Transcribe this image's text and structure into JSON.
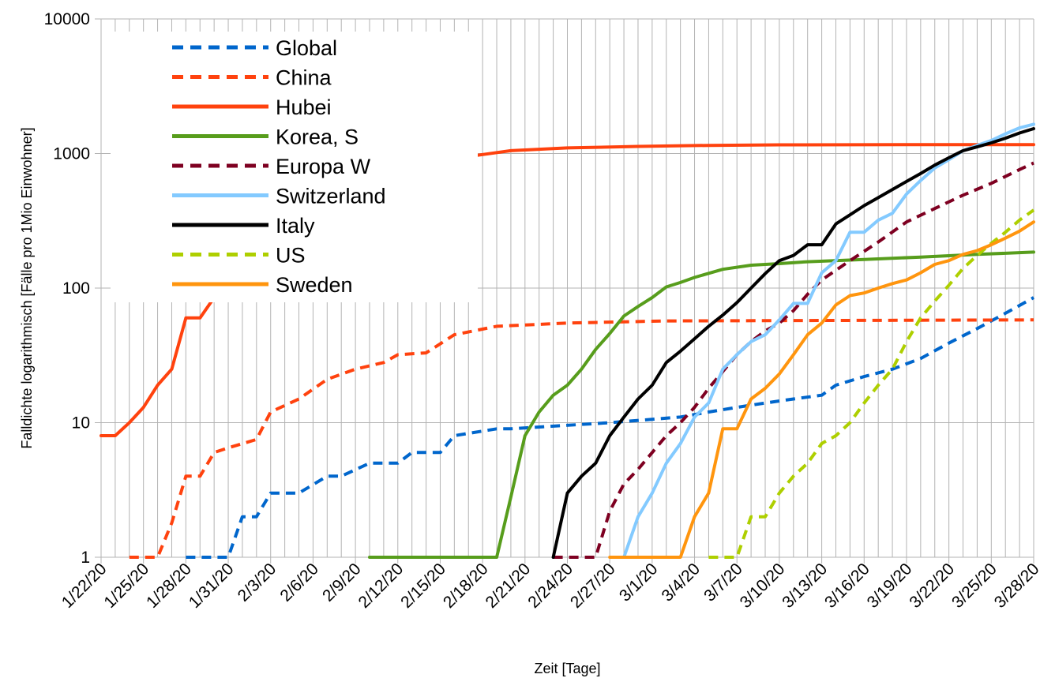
{
  "chart_data": {
    "type": "line",
    "xlabel": "Zeit [Tage]",
    "ylabel": "Falldichte logarithmisch [Fälle pro 1Mio Einwohner]",
    "yscale": "log",
    "ylim": [
      1,
      10000
    ],
    "yticks": [
      "1",
      "10",
      "100",
      "1000",
      "10000"
    ],
    "x_start": "1/22/20",
    "x_end": "3/28/20",
    "x_tick_labels": [
      "1/22/20",
      "1/25/20",
      "1/28/20",
      "1/31/20",
      "2/3/20",
      "2/6/20",
      "2/9/20",
      "2/12/20",
      "2/15/20",
      "2/18/20",
      "2/21/20",
      "2/24/20",
      "2/27/20",
      "3/1/20",
      "3/4/20",
      "3/7/20",
      "3/10/20",
      "3/13/20",
      "3/16/20",
      "3/19/20",
      "3/22/20",
      "3/25/20",
      "3/28/20"
    ],
    "grid": true,
    "legend_position": "top-left",
    "series": [
      {
        "name": "Global",
        "color": "#0066cc",
        "style": "dashed",
        "x": [
          "1/28/20",
          "1/31/20",
          "2/1/20",
          "2/2/20",
          "2/3/20",
          "2/5/20",
          "2/7/20",
          "2/8/20",
          "2/10/20",
          "2/12/20",
          "2/13/20",
          "2/15/20",
          "2/16/20",
          "2/19/20",
          "2/20/20",
          "2/27/20",
          "3/3/20",
          "3/5/20",
          "3/7/20",
          "3/9/20",
          "3/11/20",
          "3/13/20",
          "3/14/20",
          "3/16/20",
          "3/18/20",
          "3/20/20",
          "3/22/20",
          "3/24/20",
          "3/26/20",
          "3/28/20"
        ],
        "y": [
          1,
          1,
          2,
          2,
          3,
          3,
          4,
          4,
          5,
          5,
          6,
          6,
          8,
          9,
          9,
          10,
          11,
          12,
          13,
          14,
          15,
          16,
          19,
          22,
          25,
          30,
          39,
          50,
          65,
          85
        ]
      },
      {
        "name": "China",
        "color": "#ff420e",
        "style": "dashed",
        "x": [
          "1/24/20",
          "1/26/20",
          "1/27/20",
          "1/28/20",
          "1/29/20",
          "1/30/20",
          "1/31/20",
          "2/2/20",
          "2/3/20",
          "2/5/20",
          "2/7/20",
          "2/9/20",
          "2/11/20",
          "2/12/20",
          "2/14/20",
          "2/16/20",
          "2/19/20",
          "2/24/20",
          "3/2/20",
          "3/28/20"
        ],
        "y": [
          1,
          1,
          1.8,
          4,
          4,
          6,
          6.5,
          7.5,
          12,
          15,
          21,
          25,
          28,
          32,
          33,
          45,
          52,
          55,
          57,
          58
        ]
      },
      {
        "name": "Hubei",
        "color": "#ff420e",
        "style": "solid",
        "x": [
          "1/22/20",
          "1/23/20",
          "1/24/20",
          "1/25/20",
          "1/26/20",
          "1/27/20",
          "1/28/20",
          "1/29/20",
          "1/30/20",
          "1/31/20",
          "2/1/20",
          "2/2/20",
          "2/3/20",
          "2/4/20",
          "2/5/20",
          "2/6/20",
          "2/7/20",
          "2/8/20",
          "2/9/20",
          "2/10/20",
          "2/11/20",
          "2/12/20",
          "2/14/20",
          "2/17/20",
          "2/20/20",
          "2/24/20",
          "2/29/20",
          "3/5/20",
          "3/10/20",
          "3/20/20",
          "3/28/20"
        ],
        "y": [
          8,
          8,
          10,
          13,
          19,
          25,
          60,
          60,
          85,
          120,
          170,
          230,
          300,
          360,
          440,
          500,
          560,
          610,
          660,
          720,
          770,
          830,
          880,
          950,
          1050,
          1100,
          1130,
          1150,
          1160,
          1165,
          1165
        ]
      },
      {
        "name": "Korea, S",
        "color": "#579d1c",
        "style": "solid",
        "x": [
          "2/10/20",
          "2/19/20",
          "2/20/20",
          "2/21/20",
          "2/22/20",
          "2/23/20",
          "2/24/20",
          "2/25/20",
          "2/26/20",
          "2/27/20",
          "2/28/20",
          "2/29/20",
          "3/1/20",
          "3/2/20",
          "3/3/20",
          "3/4/20",
          "3/6/20",
          "3/8/20",
          "3/10/20",
          "3/12/20",
          "3/16/20",
          "3/20/20",
          "3/24/20",
          "3/28/20"
        ],
        "y": [
          1,
          1,
          2.8,
          8,
          12,
          16,
          19,
          25,
          35,
          46,
          62,
          73,
          85,
          102,
          110,
          120,
          138,
          148,
          152,
          157,
          163,
          170,
          178,
          185
        ]
      },
      {
        "name": "Europa W",
        "color": "#7e0021",
        "style": "dashed",
        "x": [
          "2/23/20",
          "2/26/20",
          "2/27/20",
          "2/28/20",
          "2/29/20",
          "3/1/20",
          "3/2/20",
          "3/3/20",
          "3/4/20",
          "3/5/20",
          "3/6/20",
          "3/7/20",
          "3/8/20",
          "3/9/20",
          "3/10/20",
          "3/11/20",
          "3/12/20",
          "3/13/20",
          "3/15/20",
          "3/17/20",
          "3/19/20",
          "3/21/20",
          "3/23/20",
          "3/25/20",
          "3/27/20",
          "3/28/20"
        ],
        "y": [
          1,
          1,
          2.2,
          3.5,
          4.5,
          6,
          8,
          10,
          13,
          18,
          24,
          32,
          40,
          48,
          55,
          68,
          90,
          115,
          160,
          220,
          310,
          390,
          490,
          600,
          760,
          850
        ]
      },
      {
        "name": "Switzerland",
        "color": "#83caff",
        "style": "solid",
        "x": [
          "2/28/20",
          "2/29/20",
          "3/1/20",
          "3/2/20",
          "3/3/20",
          "3/4/20",
          "3/5/20",
          "3/6/20",
          "3/7/20",
          "3/8/20",
          "3/9/20",
          "3/10/20",
          "3/11/20",
          "3/12/20",
          "3/13/20",
          "3/14/20",
          "3/15/20",
          "3/16/20",
          "3/17/20",
          "3/18/20",
          "3/19/20",
          "3/20/20",
          "3/21/20",
          "3/22/20",
          "3/23/20",
          "3/24/20",
          "3/25/20",
          "3/26/20",
          "3/27/20",
          "3/28/20"
        ],
        "y": [
          1,
          2,
          3,
          5,
          7,
          11,
          14,
          25,
          32,
          40,
          45,
          58,
          77,
          77,
          130,
          160,
          260,
          260,
          320,
          360,
          500,
          630,
          780,
          900,
          1050,
          1150,
          1250,
          1400,
          1550,
          1650
        ]
      },
      {
        "name": "Italy",
        "color": "#000000",
        "style": "solid",
        "x": [
          "2/23/20",
          "2/24/20",
          "2/25/20",
          "2/26/20",
          "2/27/20",
          "2/28/20",
          "2/29/20",
          "3/1/20",
          "3/2/20",
          "3/3/20",
          "3/4/20",
          "3/5/20",
          "3/6/20",
          "3/7/20",
          "3/8/20",
          "3/9/20",
          "3/10/20",
          "3/11/20",
          "3/12/20",
          "3/13/20",
          "3/14/20",
          "3/15/20",
          "3/16/20",
          "3/17/20",
          "3/18/20",
          "3/19/20",
          "3/20/20",
          "3/21/20",
          "3/22/20",
          "3/23/20",
          "3/24/20",
          "3/25/20",
          "3/26/20",
          "3/27/20",
          "3/28/20"
        ],
        "y": [
          1,
          3,
          4,
          5,
          8,
          11,
          15,
          19,
          28,
          34,
          42,
          52,
          63,
          78,
          100,
          128,
          160,
          175,
          210,
          210,
          300,
          350,
          410,
          470,
          540,
          620,
          710,
          820,
          930,
          1050,
          1120,
          1200,
          1300,
          1420,
          1530
        ]
      },
      {
        "name": "US",
        "color": "#aecf00",
        "style": "dashed",
        "x": [
          "3/5/20",
          "3/7/20",
          "3/8/20",
          "3/9/20",
          "3/10/20",
          "3/11/20",
          "3/12/20",
          "3/13/20",
          "3/14/20",
          "3/15/20",
          "3/16/20",
          "3/17/20",
          "3/18/20",
          "3/19/20",
          "3/20/20",
          "3/21/20",
          "3/22/20",
          "3/23/20",
          "3/24/20",
          "3/25/20",
          "3/26/20",
          "3/27/20",
          "3/28/20"
        ],
        "y": [
          1,
          1,
          2,
          2,
          3,
          4,
          5,
          7,
          8,
          10,
          14,
          19,
          25,
          40,
          60,
          80,
          105,
          140,
          175,
          215,
          260,
          320,
          380
        ]
      },
      {
        "name": "Sweden",
        "color": "#ff950e",
        "style": "solid",
        "x": [
          "2/27/20",
          "3/3/20",
          "3/4/20",
          "3/5/20",
          "3/6/20",
          "3/7/20",
          "3/8/20",
          "3/9/20",
          "3/10/20",
          "3/11/20",
          "3/12/20",
          "3/13/20",
          "3/14/20",
          "3/15/20",
          "3/16/20",
          "3/17/20",
          "3/18/20",
          "3/19/20",
          "3/20/20",
          "3/21/20",
          "3/22/20",
          "3/23/20",
          "3/24/20",
          "3/25/20",
          "3/26/20",
          "3/27/20",
          "3/28/20"
        ],
        "y": [
          1,
          1,
          2,
          3,
          9,
          9,
          15,
          18,
          23,
          32,
          45,
          55,
          75,
          88,
          92,
          100,
          108,
          115,
          130,
          150,
          160,
          178,
          190,
          210,
          235,
          265,
          310
        ]
      }
    ]
  }
}
